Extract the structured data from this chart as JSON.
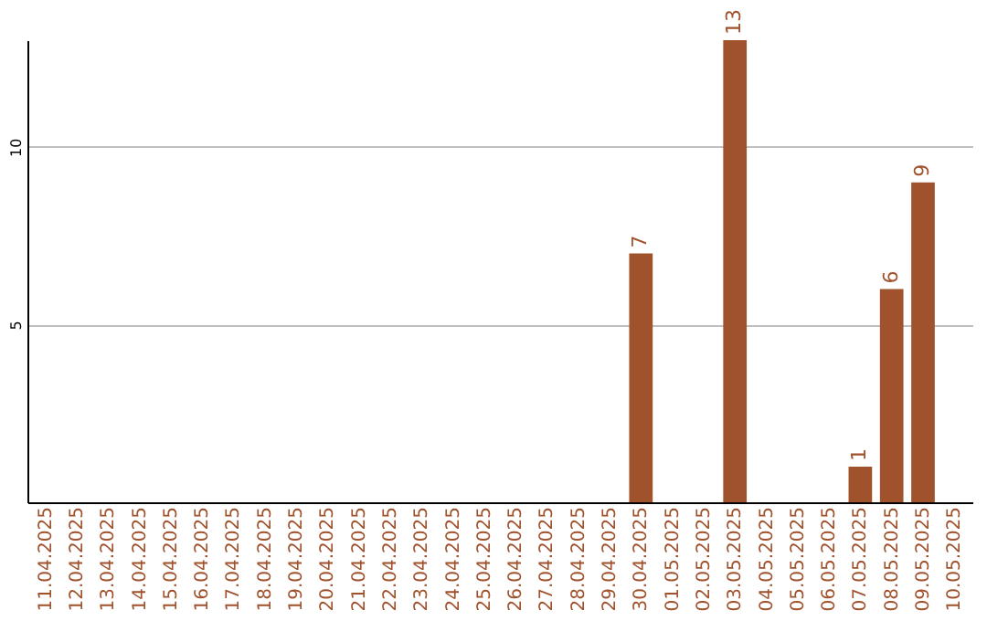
{
  "chart_data": {
    "type": "bar",
    "categories": [
      "11.04.2025",
      "12.04.2025",
      "13.04.2025",
      "14.04.2025",
      "15.04.2025",
      "16.04.2025",
      "17.04.2025",
      "18.04.2025",
      "19.04.2025",
      "20.04.2025",
      "21.04.2025",
      "22.04.2025",
      "23.04.2025",
      "24.04.2025",
      "25.04.2025",
      "26.04.2025",
      "27.04.2025",
      "28.04.2025",
      "29.04.2025",
      "30.04.2025",
      "01.05.2025",
      "02.05.2025",
      "03.05.2025",
      "04.05.2025",
      "05.05.2025",
      "06.05.2025",
      "07.05.2025",
      "08.05.2025",
      "09.05.2025",
      "10.05.2025"
    ],
    "values": [
      0,
      0,
      0,
      0,
      0,
      0,
      0,
      0,
      0,
      0,
      0,
      0,
      0,
      0,
      0,
      0,
      0,
      0,
      0,
      7,
      0,
      0,
      13,
      0,
      0,
      0,
      1,
      6,
      9,
      0
    ],
    "value_labels": [
      null,
      null,
      null,
      null,
      null,
      null,
      null,
      null,
      null,
      null,
      null,
      null,
      null,
      null,
      null,
      null,
      null,
      null,
      null,
      "7",
      null,
      null,
      "13",
      null,
      null,
      null,
      "1",
      "6",
      "9",
      null
    ],
    "color": "#a0522d",
    "ylim": [
      0,
      13
    ],
    "yticks": [
      5,
      10
    ],
    "grid": "y"
  }
}
